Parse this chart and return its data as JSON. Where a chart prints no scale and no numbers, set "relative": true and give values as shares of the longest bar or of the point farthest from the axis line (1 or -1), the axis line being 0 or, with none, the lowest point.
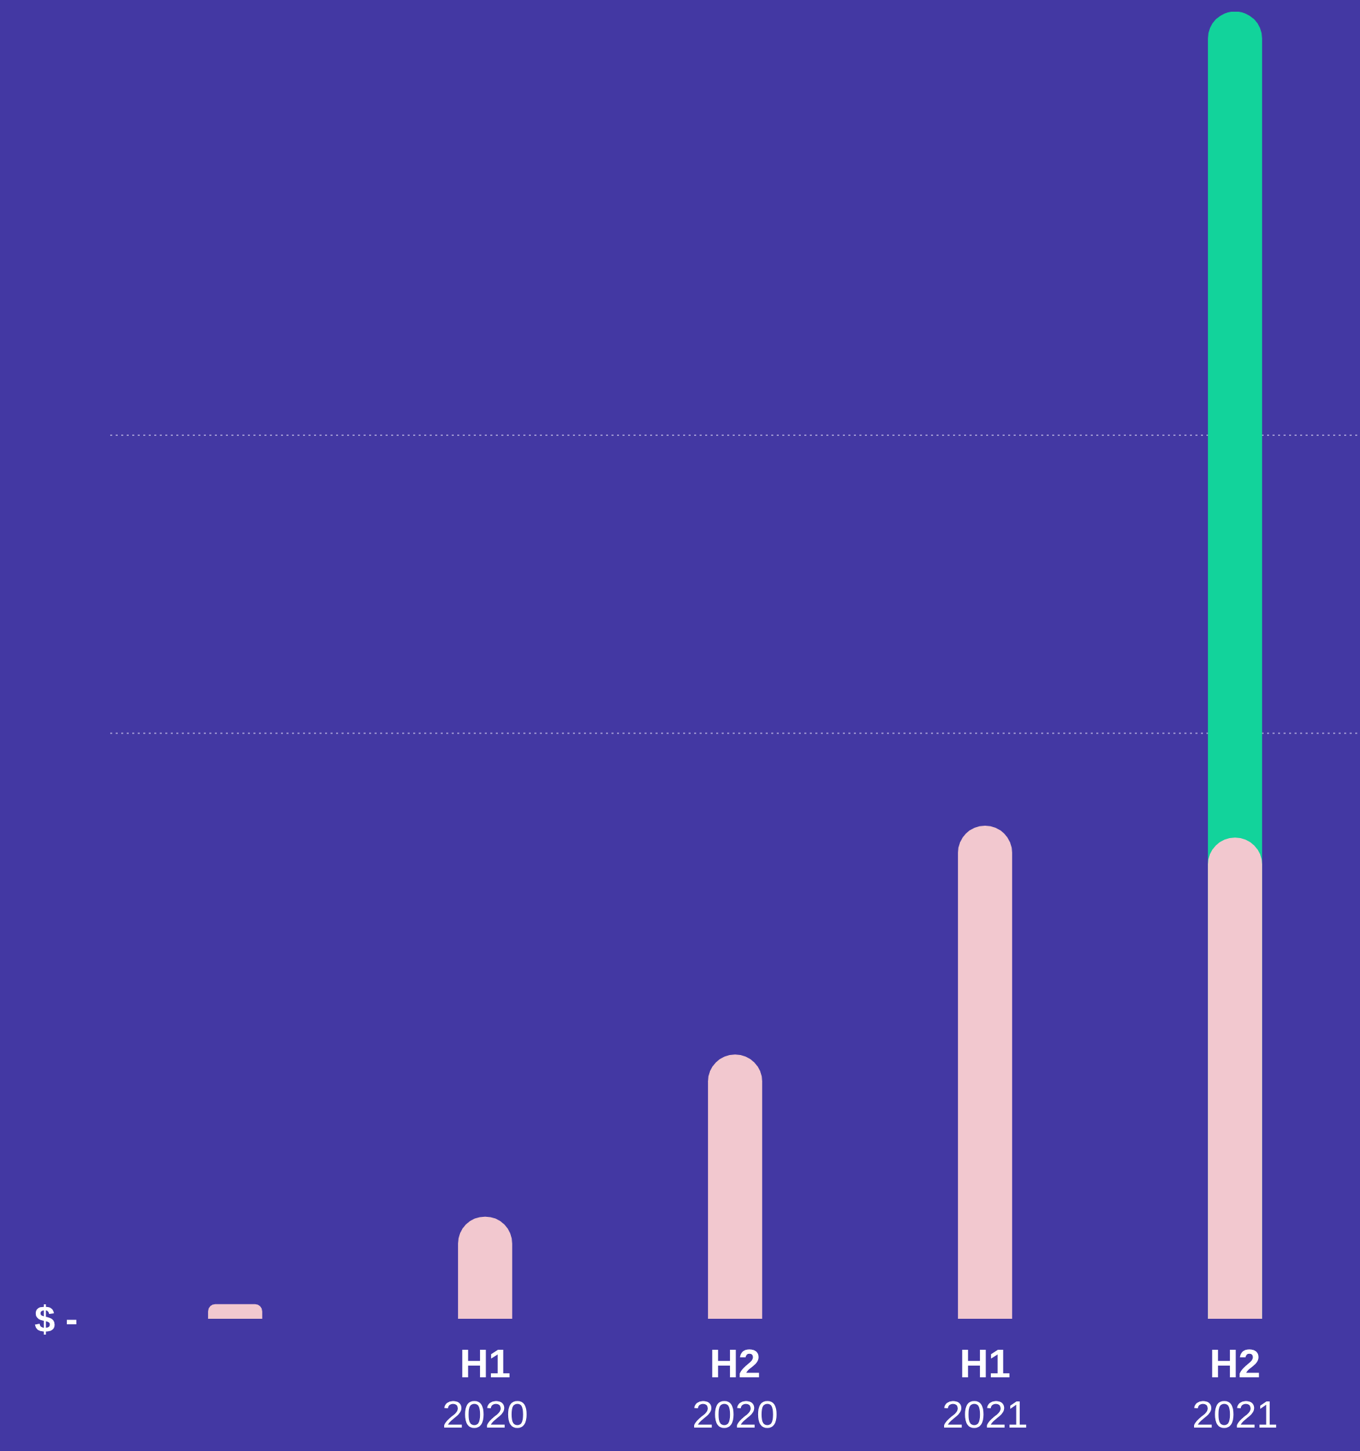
{
  "chart_data": {
    "type": "bar",
    "relative": true,
    "categories": [
      null,
      "H1 2020",
      "H2 2020",
      "H1 2021",
      "H2 2021"
    ],
    "series": [
      {
        "color": "#f2c8cf",
        "values": [
          0.011,
          0.078,
          0.202,
          0.377,
          0.368
        ]
      },
      {
        "color": "#12d39b",
        "values": [
          null,
          null,
          null,
          null,
          1
        ]
      }
    ],
    "ref_lines": [
      {
        "axis": "y",
        "value": 0.676,
        "color": "#9a92d0",
        "line_style": "dotted"
      },
      {
        "axis": "y",
        "value": 0.448,
        "color": "#9a92d0",
        "line_style": "dotted"
      }
    ],
    "annotations": [
      "$ -"
    ]
  }
}
